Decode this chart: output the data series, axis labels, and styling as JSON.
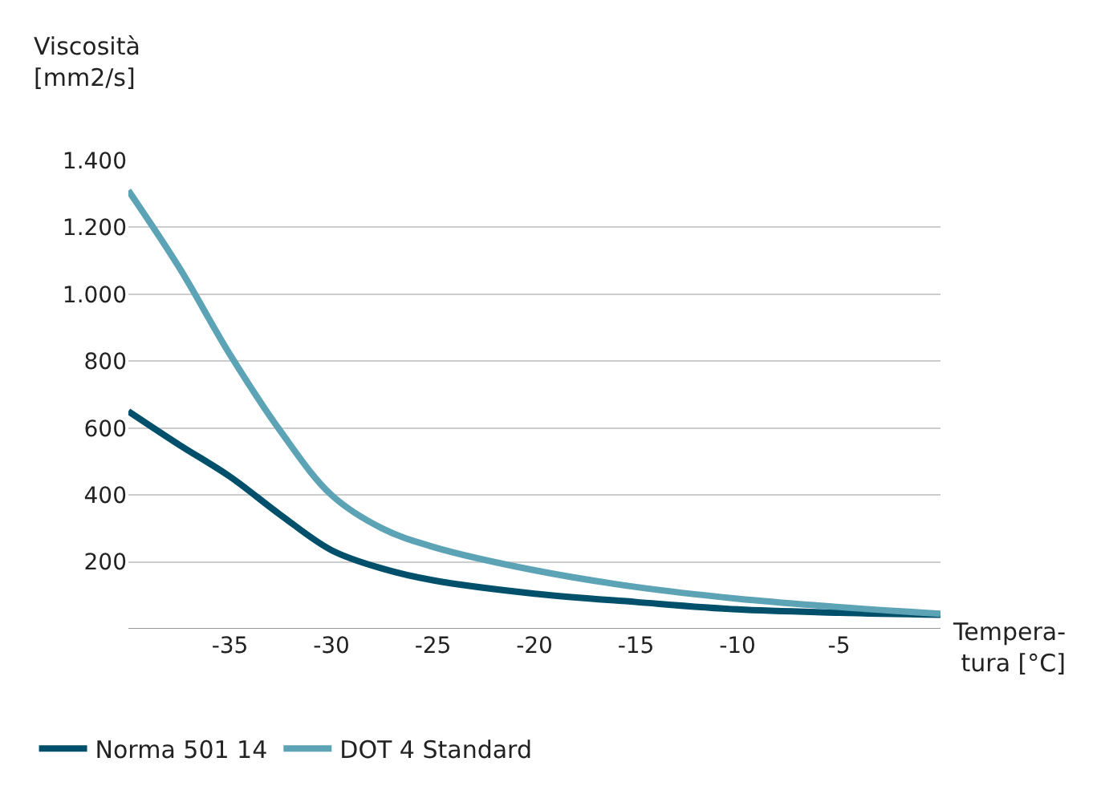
{
  "chart_data": {
    "type": "line",
    "ylabel": "Viscosità\n[mm2/s]",
    "xlabel": "Tempera-\ntura [°C]",
    "x": [
      -40,
      -37.5,
      -35,
      -32.5,
      -30,
      -27.5,
      -25,
      -20,
      -15,
      -10,
      -5,
      0
    ],
    "series": [
      {
        "name": "Norma 501 14",
        "color": "#004f6b",
        "values": [
          650,
          550,
          455,
          340,
          235,
          180,
          145,
          105,
          80,
          58,
          48,
          42
        ]
      },
      {
        "name": "DOT 4 Standard",
        "color": "#5ba3b5",
        "values": [
          1310,
          1080,
          820,
          590,
          400,
          300,
          245,
          175,
          125,
          90,
          65,
          45
        ]
      }
    ],
    "xlim": [
      -40,
      0
    ],
    "xticks": [
      -35,
      -30,
      -25,
      -20,
      -15,
      -10,
      -5
    ],
    "ylim": [
      0,
      1400
    ],
    "yticks": [
      {
        "value": 200,
        "label": "200"
      },
      {
        "value": 400,
        "label": "400"
      },
      {
        "value": 600,
        "label": "600"
      },
      {
        "value": 800,
        "label": "800"
      },
      {
        "value": 1000,
        "label": "1.000"
      },
      {
        "value": 1200,
        "label": "1.200"
      },
      {
        "value": 1400,
        "label": "1.400"
      }
    ],
    "grid": "y",
    "legend": "bottom",
    "marker": "none",
    "line_style": "solid"
  }
}
